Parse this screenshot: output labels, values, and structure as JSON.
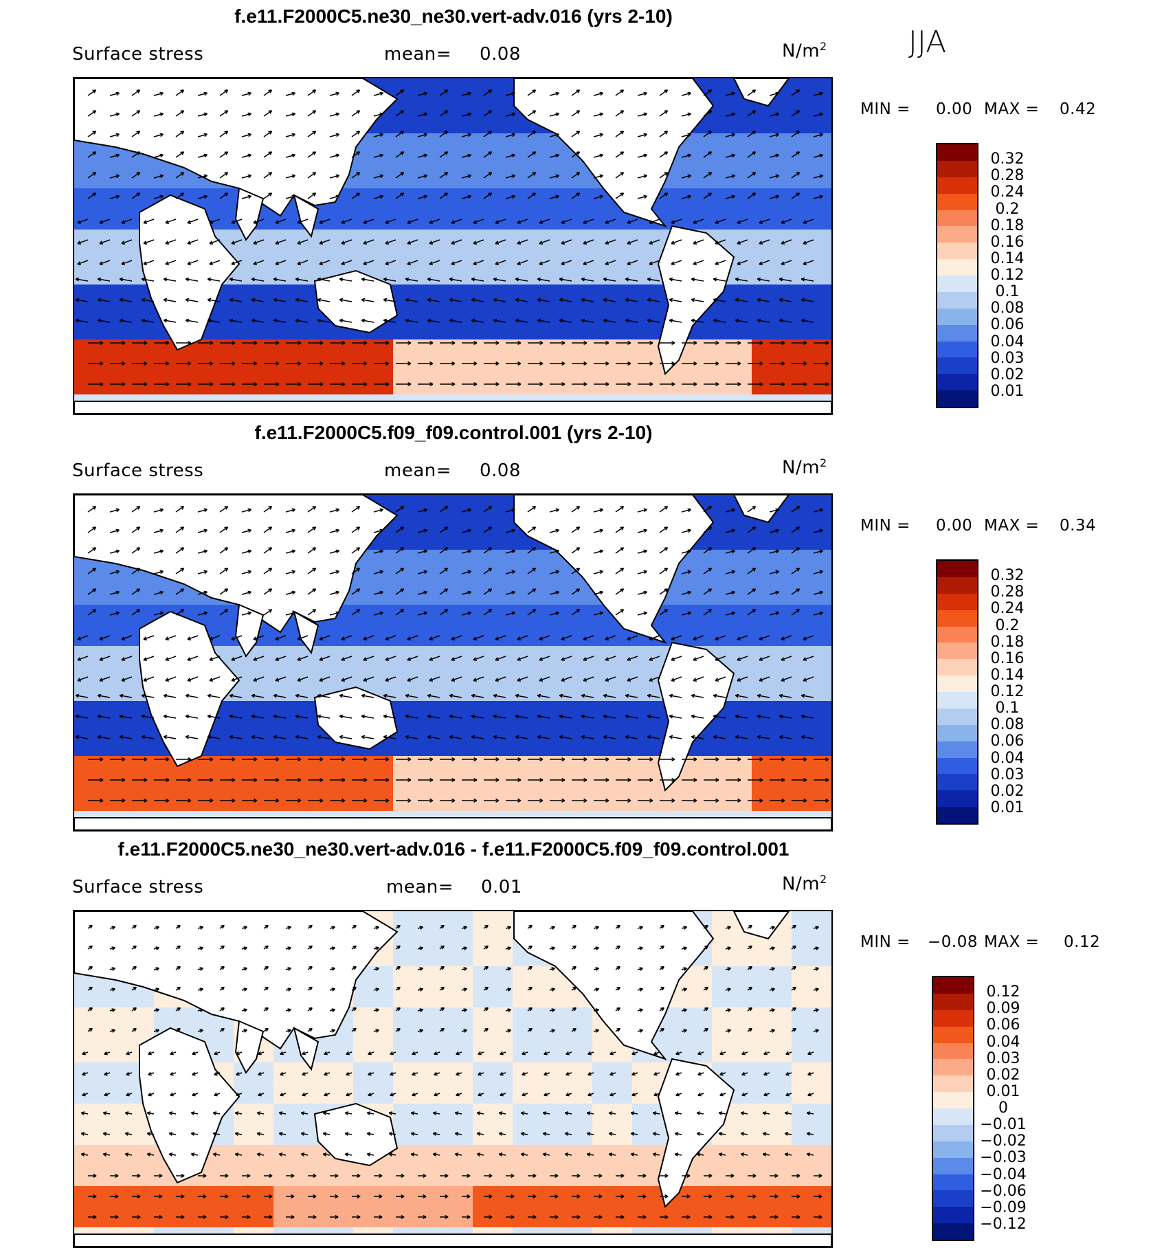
{
  "season": "JJA",
  "panels": [
    {
      "id": "top",
      "title": "f.e11.F2000C5.ne30_ne30.vert-adv.016 (yrs 2-10)",
      "left_label": "Surface stress",
      "mean_label": "mean=",
      "mean_value": "0.08",
      "units_label": "N/m",
      "units_sup": "2",
      "min_label": "MIN =",
      "min_value": "0.00",
      "max_label": "MAX =",
      "max_value": "0.42",
      "colorbar_ticks": [
        "0.32",
        "0.28",
        "0.24",
        "0.2",
        "0.18",
        "0.16",
        "0.14",
        "0.12",
        "0.1",
        "0.08",
        "0.06",
        "0.04",
        "0.03",
        "0.02",
        "0.01"
      ],
      "colorbar_colors": [
        "#7f0000",
        "#b01a00",
        "#d9300a",
        "#f2571b",
        "#f98357",
        "#fcab88",
        "#fdd2b8",
        "#fdeede",
        "#d6e6f7",
        "#b3cdf1",
        "#8ab2ec",
        "#5b8ae8",
        "#2f5fe0",
        "#1a3fc8",
        "#0b24a8",
        "#021478"
      ]
    },
    {
      "id": "middle",
      "title": "f.e11.F2000C5.f09_f09.control.001 (yrs 2-10)",
      "left_label": "Surface stress",
      "mean_label": "mean=",
      "mean_value": "0.08",
      "units_label": "N/m",
      "units_sup": "2",
      "min_label": "MIN =",
      "min_value": "0.00",
      "max_label": "MAX =",
      "max_value": "0.34",
      "colorbar_ticks": [
        "0.32",
        "0.28",
        "0.24",
        "0.2",
        "0.18",
        "0.16",
        "0.14",
        "0.12",
        "0.1",
        "0.08",
        "0.06",
        "0.04",
        "0.03",
        "0.02",
        "0.01"
      ],
      "colorbar_colors": [
        "#7f0000",
        "#b01a00",
        "#d9300a",
        "#f2571b",
        "#f98357",
        "#fcab88",
        "#fdd2b8",
        "#fdeede",
        "#d6e6f7",
        "#b3cdf1",
        "#8ab2ec",
        "#5b8ae8",
        "#2f5fe0",
        "#1a3fc8",
        "#0b24a8",
        "#021478"
      ]
    },
    {
      "id": "bottom",
      "title": "f.e11.F2000C5.ne30_ne30.vert-adv.016 - f.e11.F2000C5.f09_f09.control.001",
      "left_label": "Surface stress",
      "mean_label": "mean=",
      "mean_value": "0.01",
      "units_label": "N/m",
      "units_sup": "2",
      "min_label": "MIN =",
      "min_value": "−0.08",
      "max_label": "MAX =",
      "max_value": "0.12",
      "colorbar_ticks": [
        "0.12",
        "0.09",
        "0.06",
        "0.04",
        "0.03",
        "0.02",
        "0.01",
        "0",
        "−0.01",
        "−0.02",
        "−0.03",
        "−0.04",
        "−0.06",
        "−0.09",
        "−0.12"
      ],
      "colorbar_colors": [
        "#7f0000",
        "#b01a00",
        "#d9300a",
        "#f2571b",
        "#f98357",
        "#fcab88",
        "#fdd2b8",
        "#fdeede",
        "#d6e6f7",
        "#b3cdf1",
        "#8ab2ec",
        "#5b8ae8",
        "#2f5fe0",
        "#1a3fc8",
        "#0b24a8",
        "#021478"
      ]
    }
  ],
  "chart_data": [
    {
      "type": "heatmap",
      "title": "f.e11.F2000C5.ne30_ne30.vert-adv.016 (yrs 2-10)",
      "variable": "Surface stress",
      "units": "N/m2",
      "season": "JJA",
      "mean": 0.08,
      "min": 0.0,
      "max": 0.42,
      "levels": [
        0.01,
        0.02,
        0.03,
        0.04,
        0.06,
        0.08,
        0.1,
        0.12,
        0.14,
        0.16,
        0.18,
        0.2,
        0.24,
        0.28,
        0.32
      ]
    },
    {
      "type": "heatmap",
      "title": "f.e11.F2000C5.f09_f09.control.001 (yrs 2-10)",
      "variable": "Surface stress",
      "units": "N/m2",
      "season": "JJA",
      "mean": 0.08,
      "min": 0.0,
      "max": 0.34,
      "levels": [
        0.01,
        0.02,
        0.03,
        0.04,
        0.06,
        0.08,
        0.1,
        0.12,
        0.14,
        0.16,
        0.18,
        0.2,
        0.24,
        0.28,
        0.32
      ]
    },
    {
      "type": "heatmap",
      "title": "f.e11.F2000C5.ne30_ne30.vert-adv.016 - f.e11.F2000C5.f09_f09.control.001",
      "variable": "Surface stress",
      "units": "N/m2",
      "season": "JJA",
      "mean": 0.01,
      "min": -0.08,
      "max": 0.12,
      "levels": [
        -0.12,
        -0.09,
        -0.06,
        -0.04,
        -0.03,
        -0.02,
        -0.01,
        0,
        0.01,
        0.02,
        0.03,
        0.04,
        0.06,
        0.09,
        0.12
      ]
    }
  ]
}
